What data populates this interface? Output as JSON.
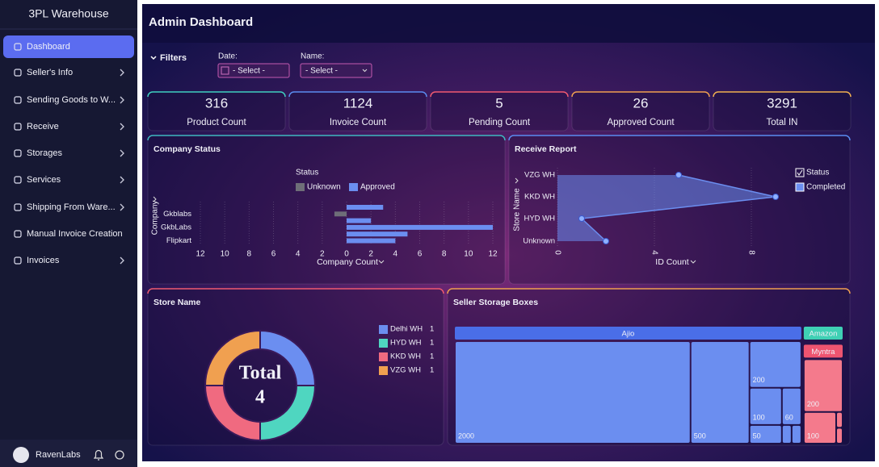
{
  "sidebar": {
    "brand": "3PL Warehouse",
    "menu": [
      {
        "label": "Dashboard",
        "active": true,
        "has_submenu": false
      },
      {
        "label": "Seller's Info",
        "has_submenu": true
      },
      {
        "label": "Sending Goods to W...",
        "has_submenu": true
      },
      {
        "label": "Receive",
        "has_submenu": true
      },
      {
        "label": "Storages",
        "has_submenu": true
      },
      {
        "label": "Services",
        "has_submenu": true
      },
      {
        "label": "Shipping From Ware...",
        "has_submenu": true
      },
      {
        "label": "Manual Invoice Creation",
        "has_submenu": false
      },
      {
        "label": "Invoices",
        "has_submenu": true
      }
    ],
    "user": "RavenLabs"
  },
  "header": {
    "title": "Admin Dashboard"
  },
  "filters": {
    "label": "Filters",
    "date": {
      "label": "Date:",
      "placeholder": "- Select -"
    },
    "name": {
      "label": "Name:",
      "placeholder": "- Select -"
    }
  },
  "kpis": [
    {
      "value": 316,
      "label": "Product Count",
      "color": "#3fd0c0"
    },
    {
      "value": 1124,
      "label": "Invoice Count",
      "color": "#5a8cf0"
    },
    {
      "value": 5,
      "label": "Pending Count",
      "color": "#f05a70"
    },
    {
      "value": 26,
      "label": "Approved Count",
      "color": "#f0a050"
    },
    {
      "value": 3291,
      "label": "Total IN",
      "color": "#f0b050"
    }
  ],
  "chart_data": [
    {
      "type": "bar",
      "orientation": "horizontal",
      "title": "Company Status",
      "legend_title": "Status",
      "y_label": "Company",
      "x_label": "Company Count",
      "categories": [
        null,
        "Gkblabs",
        null,
        "GkbLabs",
        null,
        "Flipkart"
      ],
      "series": [
        {
          "name": "Unknown",
          "color": "#6e6e78",
          "side": "left",
          "values": [
            null,
            1,
            null,
            null,
            null,
            null
          ]
        },
        {
          "name": "Approved",
          "color": "#6b8ef0",
          "side": "right",
          "values": [
            3,
            null,
            2,
            12,
            5,
            4
          ]
        }
      ],
      "xlim": [
        0,
        12
      ],
      "xticks_left": [
        12,
        10,
        8,
        6,
        4,
        2
      ],
      "xticks": [
        0,
        2,
        4,
        6,
        8,
        10,
        12
      ],
      "grid": true
    },
    {
      "type": "area",
      "orientation": "horizontal",
      "title": "Receive Report",
      "legend_title": "Status",
      "y_label": "Store Name",
      "x_label": "ID Count",
      "categories": [
        "VZG WH",
        "KKD WH",
        "HYD WH",
        "Unknown"
      ],
      "series": [
        {
          "name": "Completed",
          "color": "#6b8ef0",
          "values": [
            5,
            9,
            1,
            2
          ]
        }
      ],
      "xlim": [
        0,
        9
      ],
      "xticks": [
        0,
        4,
        8
      ],
      "grid": true
    },
    {
      "type": "pie",
      "donut": true,
      "title": "Store Name",
      "center_label": "Total",
      "center_value": 4,
      "categories": [
        "Delhi WH",
        "HYD WH",
        "KKD WH",
        "VZG WH"
      ],
      "values": [
        1,
        1,
        1,
        1
      ],
      "colors": [
        "#6b8ef0",
        "#4fd6c0",
        "#f06a80",
        "#f0a050"
      ]
    },
    {
      "type": "treemap",
      "title": "Seller Storage Boxes",
      "groups": [
        {
          "name": "Ajio",
          "color": "#4a6ee8",
          "leaf_color": "#6b8ef0",
          "values": [
            2000,
            500,
            200,
            100,
            60,
            50,
            15,
            15
          ]
        },
        {
          "name": "Amazon",
          "color": "#3fd0b4",
          "leaf_color": "#5fe0c8",
          "values": [
            10
          ]
        },
        {
          "name": "Myntra",
          "color": "#ee5470",
          "leaf_color": "#f47a8c",
          "values": [
            200,
            100,
            10,
            10
          ]
        }
      ]
    }
  ]
}
